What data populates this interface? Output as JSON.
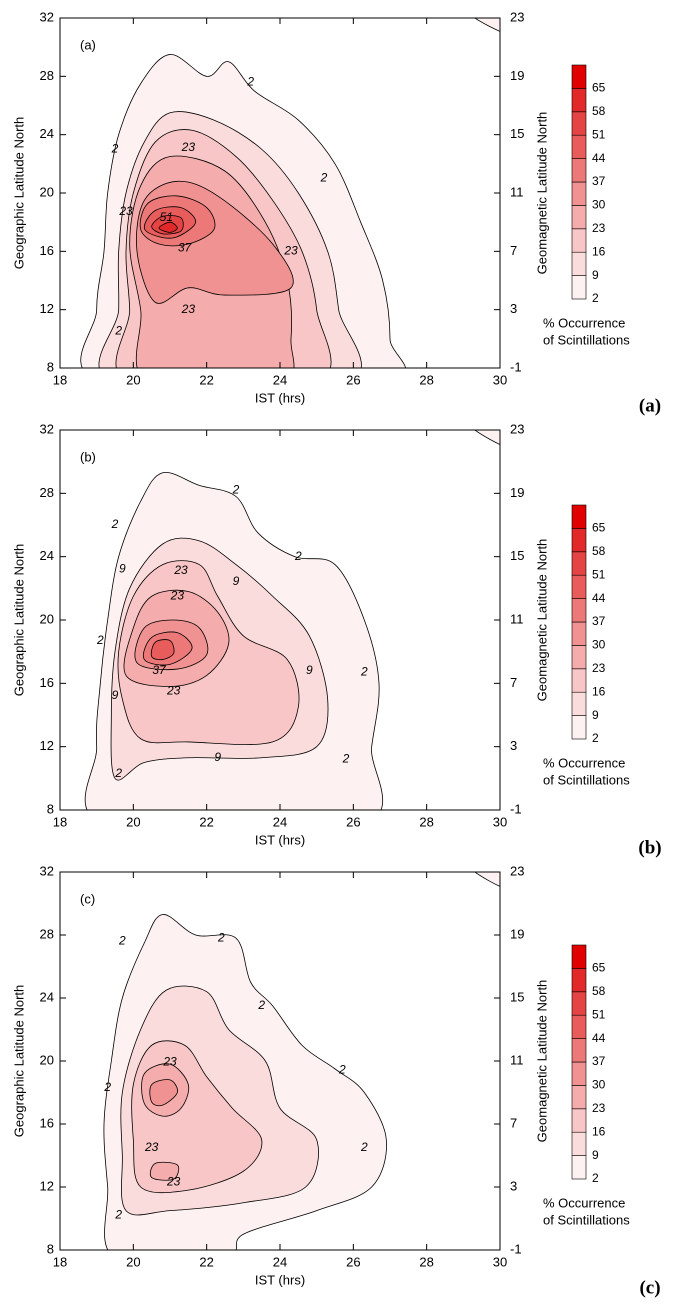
{
  "chart_data": [
    {
      "type": "contour",
      "panel_label": "(a)",
      "figure_label": "(a)",
      "x_label": "IST (hrs)",
      "y_label": "Geographic Latitude North",
      "y2_label": "Geomagnetic Latitude North",
      "xlim": [
        18,
        30
      ],
      "xticks": [
        18,
        20,
        22,
        24,
        26,
        28,
        30
      ],
      "ylim": [
        8,
        32
      ],
      "yticks": [
        8,
        12,
        16,
        20,
        24,
        28,
        32
      ],
      "y2lim": [
        -1,
        23
      ],
      "y2ticks": [
        -1,
        3,
        7,
        11,
        15,
        19,
        23
      ],
      "levels": [
        2,
        9,
        16,
        23,
        30,
        37,
        44,
        51,
        58,
        65
      ],
      "colors": [
        "#fdf1f1",
        "#fbdcdc",
        "#f8c6c6",
        "#f4acac",
        "#f19292",
        "#ec7878",
        "#e85c5c",
        "#e44444",
        "#e22828",
        "#e00000"
      ],
      "colorbar_title": [
        "% Occurrence",
        "of Scintillations"
      ],
      "contours": [
        {
          "level": 2,
          "x": [
            19.2,
            19.0,
            19.2,
            19.3,
            19.6,
            20.2,
            21,
            22,
            22.6,
            23.3,
            24.5,
            25.5,
            26.2,
            26.8,
            27,
            26.8
          ],
          "y": [
            7,
            12,
            16,
            20,
            24,
            27.5,
            29.5,
            28,
            29,
            27,
            25,
            22,
            18,
            14,
            10,
            7
          ]
        },
        {
          "level": 2,
          "x": [
            29.1,
            30.5,
            30.5
          ],
          "y": [
            32.5,
            30.7,
            33
          ]
        },
        {
          "level": 9,
          "x": [
            19.5,
            19.6,
            19.6,
            19.8,
            20.3,
            21,
            22.2,
            23.5,
            24.5,
            25.3,
            25.6,
            25.8
          ],
          "y": [
            7,
            12,
            16,
            20,
            23.5,
            25.5,
            25,
            23,
            20,
            16,
            12,
            7
          ]
        },
        {
          "level": 16,
          "x": [
            19.9,
            19.9,
            19.8,
            20,
            20.6,
            21.6,
            22.8,
            23.8,
            24.6,
            25,
            25
          ],
          "y": [
            7,
            12,
            16,
            20,
            23.5,
            24.3,
            22.5,
            19.5,
            16,
            12,
            7
          ]
        },
        {
          "level": 23,
          "x": [
            20.4,
            20.2,
            19.9,
            20.2,
            21,
            22.5,
            23.6,
            24.2,
            24.3,
            24
          ],
          "y": [
            7,
            12,
            16.5,
            20.5,
            22.5,
            21.5,
            18,
            14,
            10,
            7
          ]
        },
        {
          "level": 30,
          "x": [
            20.6,
            20.1,
            20.3,
            21.2,
            22.3,
            23.8,
            24.3,
            22.5,
            21.5
          ],
          "y": [
            12.5,
            16,
            19.5,
            20.8,
            19.8,
            16.5,
            13.5,
            13,
            13.5
          ]
        },
        {
          "level": 37,
          "x": [
            20.2,
            20.4,
            21.2,
            22,
            22.2,
            21.5,
            20.7
          ],
          "y": [
            17.5,
            19.3,
            19.8,
            19,
            17.5,
            16.5,
            16.5
          ]
        },
        {
          "level": 44,
          "x": [
            20.3,
            20.6,
            21.3,
            21.7,
            21.2,
            20.7
          ],
          "y": [
            17.6,
            18.8,
            19,
            18,
            17,
            17
          ]
        },
        {
          "level": 51,
          "x": [
            20.5,
            20.8,
            21.3,
            21.3,
            20.8
          ],
          "y": [
            17.7,
            18.4,
            18.3,
            17.4,
            17.2
          ]
        },
        {
          "level": 58,
          "x": [
            20.7,
            21,
            21.2,
            21
          ],
          "y": [
            17.6,
            18,
            17.6,
            17.3
          ]
        }
      ],
      "contour_labels": [
        2,
        2,
        2,
        2,
        23,
        23,
        51,
        37,
        23,
        23
      ]
    },
    {
      "type": "contour",
      "panel_label": "(b)",
      "figure_label": "(b)",
      "x_label": "IST (hrs)",
      "y_label": "Geographic Latitude North",
      "y2_label": "Geomagnetic Latitude North",
      "xlim": [
        18,
        30
      ],
      "xticks": [
        18,
        20,
        22,
        24,
        26,
        28,
        30
      ],
      "ylim": [
        8,
        32
      ],
      "yticks": [
        8,
        12,
        16,
        20,
        24,
        28,
        32
      ],
      "y2lim": [
        -1,
        23
      ],
      "y2ticks": [
        -1,
        3,
        7,
        11,
        15,
        19,
        23
      ],
      "levels": [
        2,
        9,
        16,
        23,
        30,
        37,
        44,
        51,
        58,
        65
      ],
      "colors": [
        "#fdf1f1",
        "#fbdcdc",
        "#f8c6c6",
        "#f4acac",
        "#f19292",
        "#ec7878",
        "#e85c5c",
        "#e44444",
        "#e22828",
        "#e00000"
      ],
      "colorbar_title": [
        "% Occurrence",
        "of Scintillations"
      ],
      "contours": [
        {
          "level": 2,
          "x": [
            19.3,
            19.0,
            19.1,
            19.3,
            19.6,
            20.2,
            20.8,
            21.8,
            22.8,
            23.4,
            24.4,
            25.5,
            26.3,
            26.7,
            26.5,
            26.2
          ],
          "y": [
            7,
            12,
            16,
            20,
            24,
            27.5,
            29.3,
            28.5,
            27.8,
            25.5,
            24,
            23.5,
            20,
            16,
            12,
            7
          ]
        },
        {
          "level": 2,
          "x": [
            29.1,
            30.5,
            30.5
          ],
          "y": [
            32.5,
            30.7,
            33
          ]
        },
        {
          "level": 9,
          "x": [
            19.5,
            19.4,
            19.5,
            19.9,
            20.8,
            21.8,
            22.8,
            23.8,
            24.8,
            25.3,
            25,
            23.5,
            21.5,
            20.3
          ],
          "y": [
            10,
            14,
            18,
            22,
            24.8,
            25,
            23.5,
            21.5,
            19,
            15,
            12,
            11.3,
            11.3,
            11
          ]
        },
        {
          "level": 16,
          "x": [
            20.2,
            19.7,
            19.6,
            20,
            20.8,
            21.8,
            22.3,
            23,
            24.2,
            24.5,
            23.8,
            21.5
          ],
          "y": [
            12.5,
            15,
            18,
            21.5,
            23.5,
            23.5,
            21.5,
            19,
            17.5,
            14.5,
            12.3,
            12.3
          ]
        },
        {
          "level": 23,
          "x": [
            19.8,
            20,
            20.5,
            21.5,
            22.3,
            22.6,
            22,
            21
          ],
          "y": [
            16.5,
            19.5,
            21.5,
            21.8,
            20.5,
            18.5,
            16.5,
            15.8
          ]
        },
        {
          "level": 30,
          "x": [
            20.1,
            20.3,
            21.1,
            21.8,
            22,
            21.2
          ],
          "y": [
            17.3,
            19.5,
            20,
            19.5,
            17.8,
            16.9
          ]
        },
        {
          "level": 37,
          "x": [
            20.3,
            20.5,
            21.2,
            21.6,
            21
          ],
          "y": [
            17.5,
            18.9,
            19.2,
            18.2,
            17.2
          ]
        },
        {
          "level": 44,
          "x": [
            20.5,
            20.6,
            21,
            21.1,
            20.8
          ],
          "y": [
            17.7,
            18.6,
            18.7,
            17.9,
            17.5
          ]
        }
      ],
      "contour_labels": [
        2,
        2,
        2,
        2,
        9,
        23,
        9,
        23,
        37,
        23,
        9,
        9,
        2,
        9,
        2,
        2
      ]
    },
    {
      "type": "contour",
      "panel_label": "(c)",
      "figure_label": "(c)",
      "x_label": "IST (hrs)",
      "y_label": "Geographic Latitude North",
      "y2_label": "Geomagnetic Latitude North",
      "xlim": [
        18,
        30
      ],
      "xticks": [
        18,
        20,
        22,
        24,
        26,
        28,
        30
      ],
      "ylim": [
        8,
        32
      ],
      "yticks": [
        8,
        12,
        16,
        20,
        24,
        28,
        32
      ],
      "y2lim": [
        -1,
        23
      ],
      "y2ticks": [
        -1,
        3,
        7,
        11,
        15,
        19,
        23
      ],
      "levels": [
        2,
        9,
        16,
        23,
        30,
        37,
        44,
        51,
        58,
        65
      ],
      "colors": [
        "#fdf1f1",
        "#fbdcdc",
        "#f8c6c6",
        "#f4acac",
        "#f19292",
        "#ec7878",
        "#e85c5c",
        "#e44444",
        "#e22828",
        "#e00000"
      ],
      "colorbar_title": [
        "% Occurrence",
        "of Scintillations"
      ],
      "contours": [
        {
          "level": 2,
          "x": [
            19.5,
            19.3,
            19.2,
            19.4,
            19.7,
            20.3,
            20.8,
            21.7,
            22.8,
            23.2,
            23.8,
            24.6,
            25.5,
            26.3,
            26.9,
            26.5,
            25,
            23,
            22.5
          ],
          "y": [
            7.5,
            12,
            16,
            20,
            24,
            27.5,
            29.3,
            28,
            27.8,
            25,
            23.5,
            21,
            19.5,
            18,
            15,
            12,
            10.5,
            9,
            7.5
          ]
        },
        {
          "level": 2,
          "x": [
            29.1,
            30.5,
            30.5
          ],
          "y": [
            32.5,
            30.7,
            33
          ]
        },
        {
          "level": 9,
          "x": [
            19.8,
            19.7,
            19.7,
            20.2,
            20.9,
            22,
            22.6,
            23.6,
            24,
            25,
            24.7,
            23,
            21
          ],
          "y": [
            10.5,
            14,
            18,
            22,
            24.5,
            24.4,
            22,
            20,
            17,
            15,
            12,
            11,
            10.5
          ]
        },
        {
          "level": 16,
          "x": [
            20.2,
            20,
            20,
            20.5,
            21.4,
            22,
            22.7,
            23.5,
            23,
            21.5
          ],
          "y": [
            12,
            15,
            18.5,
            21,
            21,
            19,
            17,
            15,
            13,
            11.8
          ]
        },
        {
          "level": 23,
          "x": [
            20.3,
            20.3,
            21,
            21.5,
            21.3,
            20.8
          ],
          "y": [
            17.3,
            19.2,
            19.8,
            18.5,
            17,
            16.5
          ]
        },
        {
          "level": 23,
          "x": [
            20.5,
            20.6,
            21.2,
            21.1
          ],
          "y": [
            12.6,
            13.5,
            13.4,
            12.5
          ]
        },
        {
          "level": 30,
          "x": [
            20.5,
            20.5,
            21,
            21.2,
            20.8
          ],
          "y": [
            17.4,
            18.5,
            18.8,
            18,
            17.2
          ]
        }
      ],
      "contour_labels": [
        2,
        2,
        2,
        2,
        23,
        2,
        23,
        23,
        2,
        2
      ]
    }
  ]
}
